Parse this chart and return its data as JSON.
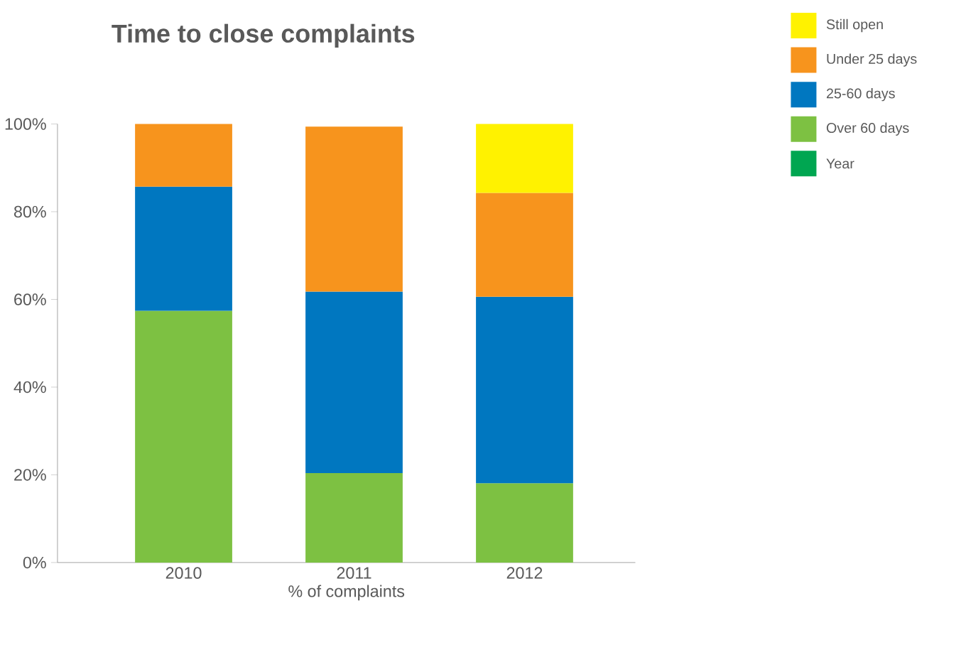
{
  "chart_data": {
    "type": "bar",
    "title": "Time to close complaints",
    "xlabel": "% of complaints",
    "categories": [
      "2010",
      "2011",
      "2012"
    ],
    "stacked": true,
    "series": [
      {
        "name": "Year",
        "color": "#00a651",
        "values": [
          null,
          null,
          null
        ]
      },
      {
        "name": "Over 60 days",
        "color": "#7dc142",
        "values": [
          57.4,
          20.4,
          18.1
        ]
      },
      {
        "name": "25-60 days",
        "color": "#0077c0",
        "values": [
          28.3,
          41.4,
          42.5
        ]
      },
      {
        "name": "Under 25 days",
        "color": "#f7941d",
        "values": [
          14.3,
          37.6,
          23.7
        ]
      },
      {
        "name": "Still open",
        "color": "#fff200",
        "values": [
          null,
          null,
          15.7
        ]
      }
    ],
    "ylim": [
      0,
      100
    ],
    "yticks": [
      {
        "value": 0,
        "label": "0%"
      },
      {
        "value": 20,
        "label": "20%"
      },
      {
        "value": 40,
        "label": "40%"
      },
      {
        "value": 60,
        "label": "60%"
      },
      {
        "value": 80,
        "label": "80%"
      },
      {
        "value": 100,
        "label": "100%"
      }
    ],
    "legend": "top right",
    "grid": false
  }
}
